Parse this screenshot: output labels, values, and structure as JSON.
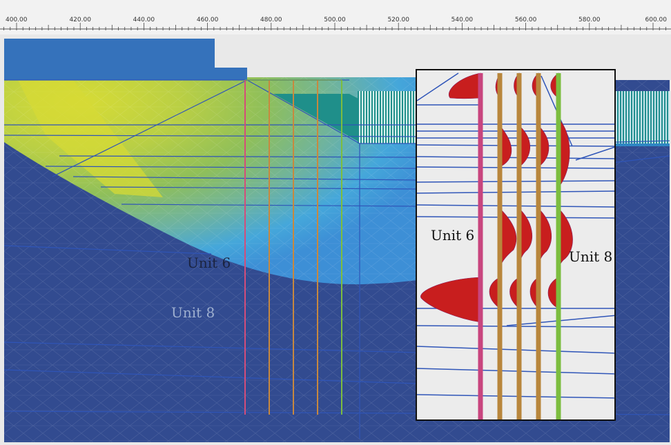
{
  "ruler": {
    "ticks": [
      "400.00",
      "420.00",
      "440.00",
      "460.00",
      "480.00",
      "500.00",
      "520.00",
      "540.00",
      "560.00",
      "580.00",
      "600.00"
    ]
  },
  "labels": {
    "unit6_main": "Unit 6",
    "unit8_main": "Unit 8",
    "unit6_inset": "Unit 6",
    "unit8_inset": "Unit 8"
  },
  "colors": {
    "background_blue": "#324b90",
    "soil_yellow": "#c8d43a",
    "soil_green": "#8fbf5a",
    "soil_cyan": "#43a6d9",
    "inclinometer_1": "#d44d7a",
    "inclinometer_2": "#b8863c",
    "inclinometer_5": "#7cbd3f",
    "displacement_red": "#c81e1e"
  }
}
